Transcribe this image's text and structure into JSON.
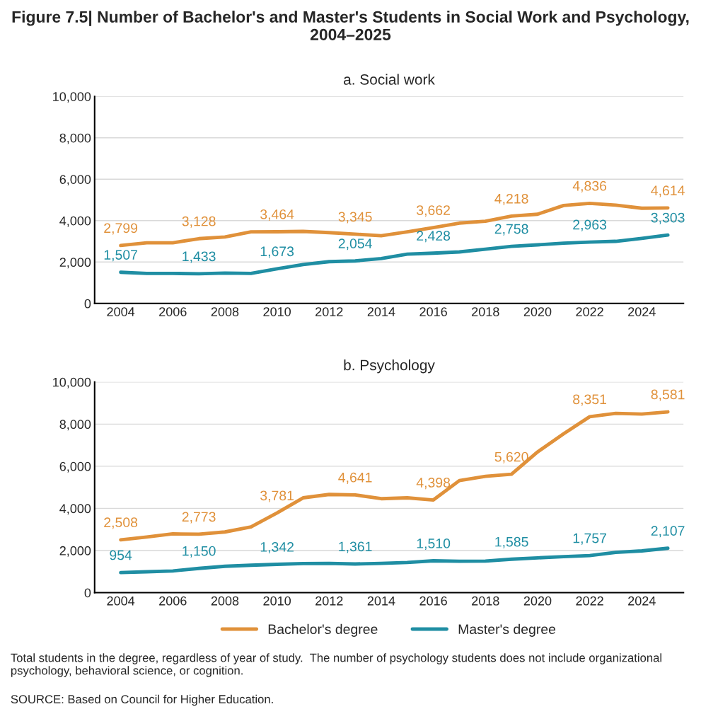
{
  "chart_data": [
    {
      "type": "line",
      "title": "Figure 7.5| Number of Bachelor's and Master's Students in Social Work and Psychology, 2004–2025",
      "subtitle": "a. Social work",
      "x": [
        2004,
        2005,
        2006,
        2007,
        2008,
        2009,
        2010,
        2011,
        2012,
        2013,
        2014,
        2015,
        2016,
        2017,
        2018,
        2019,
        2020,
        2021,
        2022,
        2023,
        2024,
        2025
      ],
      "series": [
        {
          "color": "#e0913a",
          "values": [
            2799,
            2930,
            2930,
            3128,
            3210,
            3460,
            3464,
            3480,
            3420,
            3345,
            3270,
            3460,
            3662,
            3880,
            3970,
            4218,
            4310,
            4730,
            4836,
            4750,
            4600,
            4614
          ],
          "value_labels": [
            "2,799",
            null,
            null,
            "3,128",
            null,
            null,
            "3,464",
            null,
            null,
            "3,345",
            null,
            null,
            "3,662",
            null,
            null,
            "4,218",
            null,
            null,
            "4,836",
            null,
            null,
            "4,614"
          ]
        },
        {
          "color": "#1f8ea3",
          "values": [
            1507,
            1450,
            1450,
            1433,
            1470,
            1450,
            1673,
            1880,
            2020,
            2054,
            2170,
            2380,
            2428,
            2490,
            2620,
            2758,
            2830,
            2910,
            2963,
            3000,
            3140,
            3303
          ],
          "value_labels": [
            "1,507",
            null,
            null,
            "1,433",
            null,
            null,
            "1,673",
            null,
            null,
            "2,054",
            null,
            null,
            "2,428",
            null,
            null,
            "2,758",
            null,
            null,
            "2,963",
            null,
            null,
            "3,303"
          ]
        }
      ],
      "xlim": [
        2003.0,
        2025.6
      ],
      "xticks": [
        2004,
        2006,
        2008,
        2010,
        2012,
        2014,
        2016,
        2018,
        2020,
        2022,
        2024
      ],
      "ylim": [
        0,
        10000
      ],
      "yticks": [
        {
          "value": 0,
          "label": "0"
        },
        {
          "value": 2000,
          "label": "2,000"
        },
        {
          "value": 4000,
          "label": "4,000"
        },
        {
          "value": 6000,
          "label": "6,000"
        },
        {
          "value": 8000,
          "label": "8,000"
        },
        {
          "value": 10000,
          "label": "10,000"
        }
      ],
      "grid": "y",
      "marker": "none",
      "line_style": "solid"
    },
    {
      "type": "line",
      "subtitle": "b. Psychology",
      "x": [
        2004,
        2005,
        2006,
        2007,
        2008,
        2009,
        2010,
        2011,
        2012,
        2013,
        2014,
        2015,
        2016,
        2017,
        2018,
        2019,
        2020,
        2021,
        2022,
        2023,
        2024,
        2025
      ],
      "series": [
        {
          "name": "Bachelor's degree",
          "color": "#e0913a",
          "values": [
            2508,
            2640,
            2790,
            2773,
            2880,
            3120,
            3781,
            4500,
            4660,
            4641,
            4460,
            4500,
            4398,
            5320,
            5520,
            5620,
            6680,
            7540,
            8351,
            8510,
            8480,
            8581
          ],
          "value_labels": [
            "2,508",
            null,
            null,
            "2,773",
            null,
            null,
            "3,781",
            null,
            null,
            "4,641",
            null,
            null,
            "4,398",
            null,
            null,
            "5,620",
            null,
            null,
            "8,351",
            null,
            null,
            "8,581"
          ]
        },
        {
          "name": "Master's degree",
          "color": "#1f8ea3",
          "values": [
            954,
            990,
            1030,
            1150,
            1250,
            1300,
            1342,
            1380,
            1390,
            1361,
            1390,
            1430,
            1510,
            1490,
            1500,
            1585,
            1650,
            1710,
            1757,
            1910,
            1980,
            2107
          ],
          "value_labels": [
            "954",
            null,
            null,
            "1,150",
            null,
            null,
            "1,342",
            null,
            null,
            "1,361",
            null,
            null,
            "1,510",
            null,
            null,
            "1,585",
            null,
            null,
            "1,757",
            null,
            null,
            "2,107"
          ]
        }
      ],
      "xlim": [
        2003.0,
        2025.6
      ],
      "xticks": [
        2004,
        2006,
        2008,
        2010,
        2012,
        2014,
        2016,
        2018,
        2020,
        2022,
        2024
      ],
      "ylim": [
        0,
        10000
      ],
      "yticks": [
        {
          "value": 0,
          "label": "0"
        },
        {
          "value": 2000,
          "label": "2,000"
        },
        {
          "value": 4000,
          "label": "4,000"
        },
        {
          "value": 6000,
          "label": "6,000"
        },
        {
          "value": 8000,
          "label": "8,000"
        },
        {
          "value": 10000,
          "label": "10,000"
        }
      ],
      "grid": "y",
      "legend": "bottom",
      "marker": "none",
      "line_style": "solid",
      "annotations": [
        "Total students in the degree, regardless of year of study.  The number of psychology students does not include organizational psychology, behavioral science, or cognition.",
        "SOURCE: Based on Council for Higher Education."
      ]
    }
  ]
}
